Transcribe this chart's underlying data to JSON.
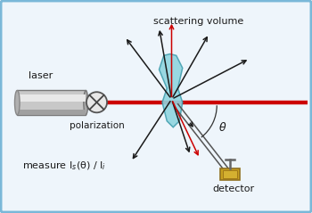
{
  "bg_color": "#eef5fb",
  "border_color": "#7ab8d8",
  "beam_color": "#cc0000",
  "arrow_black": "#1a1a1a",
  "arrow_red": "#cc0000",
  "text_color": "#1a1a1a",
  "label_laser": "laser",
  "label_polarization": "polarization",
  "label_measure": "measure I$_{s}$(θ) / I$_{i}$",
  "label_detector": "detector",
  "label_theta": "θ",
  "label_scatter": "scattering volume",
  "figsize": [
    3.5,
    2.39
  ],
  "dpi": 100,
  "xlim": [
    0,
    10
  ],
  "ylim": [
    0,
    6.83
  ]
}
